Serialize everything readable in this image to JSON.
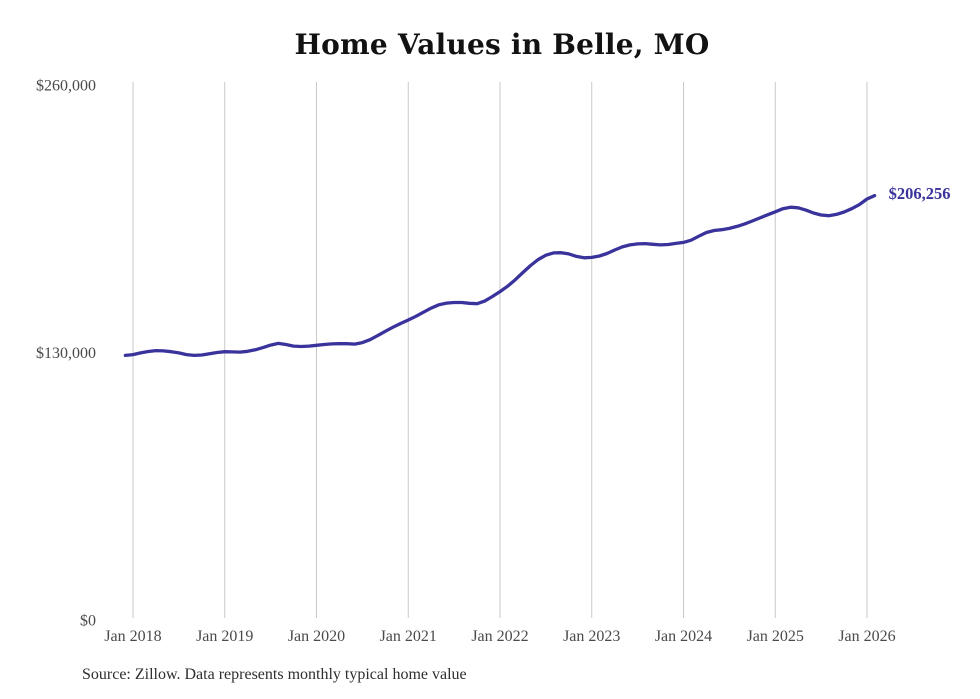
{
  "chart_data": {
    "type": "line",
    "title": "Home Values in Belle, MO",
    "source": "Source: Zillow. Data represents monthly typical home value",
    "end_label": "$206,256",
    "latest_value": 206256,
    "series_name": "Monthly typical home value",
    "line_color": "#3a339c",
    "grid_color": "#c9c9c9",
    "tick_color": "#4a4a4a",
    "x_start": "Dec 2017",
    "x_end": "Feb 2026",
    "x_ticks": [
      "Jan 2018",
      "Jan 2019",
      "Jan 2020",
      "Jan 2021",
      "Jan 2022",
      "Jan 2023",
      "Jan 2024",
      "Jan 2025",
      "Jan 2026"
    ],
    "y_ticks": [
      {
        "label": "$260,000",
        "value": 260000
      },
      {
        "label": "$130,000",
        "value": 130000
      },
      {
        "label": "$0",
        "value": 0
      }
    ],
    "ylim": [
      0,
      260000
    ],
    "grid": "vertical-only",
    "legend": "none",
    "monthly_values": [
      128600,
      129000,
      129800,
      130500,
      130900,
      130800,
      130400,
      129800,
      129000,
      128600,
      128800,
      129400,
      130000,
      130400,
      130300,
      130200,
      130600,
      131300,
      132400,
      133600,
      134400,
      133900,
      133100,
      132900,
      133100,
      133500,
      133900,
      134200,
      134300,
      134300,
      134100,
      134800,
      136200,
      138200,
      140300,
      142300,
      144100,
      145800,
      147600,
      149600,
      151600,
      153200,
      154000,
      154300,
      154300,
      153900,
      153700,
      155000,
      157200,
      159600,
      162200,
      165400,
      168900,
      172300,
      175200,
      177300,
      178400,
      178500,
      177900,
      176700,
      176000,
      176200,
      176900,
      178100,
      179800,
      181300,
      182300,
      182800,
      182900,
      182600,
      182300,
      182500,
      183000,
      183500,
      184600,
      186500,
      188300,
      189300,
      189700,
      190300,
      191300,
      192500,
      193900,
      195400,
      196900,
      198400,
      199900,
      200600,
      200300,
      199200,
      197800,
      196800,
      196500,
      197100,
      198300,
      199900,
      201900,
      204600,
      206256
    ]
  }
}
